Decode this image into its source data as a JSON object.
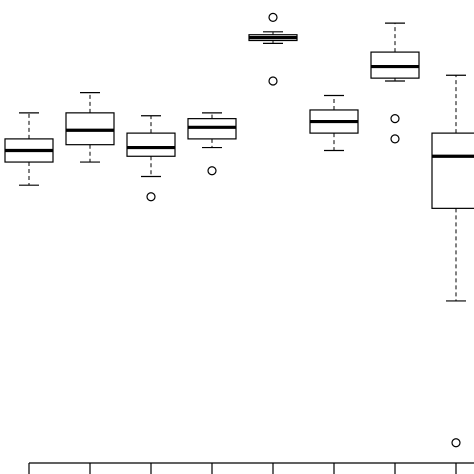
{
  "chart_data": {
    "type": "boxplot",
    "title": "",
    "xlabel": "",
    "ylabel": "",
    "ylim": [
      -0.5,
      15.5
    ],
    "grid": false,
    "legend": "none",
    "colors": {
      "stroke": "#000000",
      "fill": "#ffffff",
      "background": "#ffffff"
    },
    "boxes": [
      {
        "whisker_low": 9.1,
        "q1": 9.9,
        "median": 10.3,
        "q3": 10.7,
        "whisker_high": 11.6,
        "outliers": []
      },
      {
        "whisker_low": 9.9,
        "q1": 10.5,
        "median": 11.0,
        "q3": 11.6,
        "whisker_high": 12.3,
        "outliers": []
      },
      {
        "whisker_low": 9.4,
        "q1": 10.1,
        "median": 10.4,
        "q3": 10.9,
        "whisker_high": 11.5,
        "outliers": [
          8.7
        ]
      },
      {
        "whisker_low": 10.4,
        "q1": 10.7,
        "median": 11.1,
        "q3": 11.4,
        "whisker_high": 11.6,
        "outliers": [
          9.6
        ]
      },
      {
        "whisker_low": 14.0,
        "q1": 14.1,
        "median": 14.2,
        "q3": 14.3,
        "whisker_high": 14.4,
        "outliers": [
          14.9,
          12.7
        ]
      },
      {
        "whisker_low": 10.3,
        "q1": 10.9,
        "median": 11.3,
        "q3": 11.7,
        "whisker_high": 12.2,
        "outliers": []
      },
      {
        "whisker_low": 12.7,
        "q1": 12.8,
        "median": 13.2,
        "q3": 13.7,
        "whisker_high": 14.7,
        "outliers": [
          11.4,
          10.7
        ]
      },
      {
        "whisker_low": 5.1,
        "q1": 8.3,
        "median": 10.1,
        "q3": 10.9,
        "whisker_high": 12.9,
        "outliers": [
          0.2
        ]
      }
    ]
  }
}
